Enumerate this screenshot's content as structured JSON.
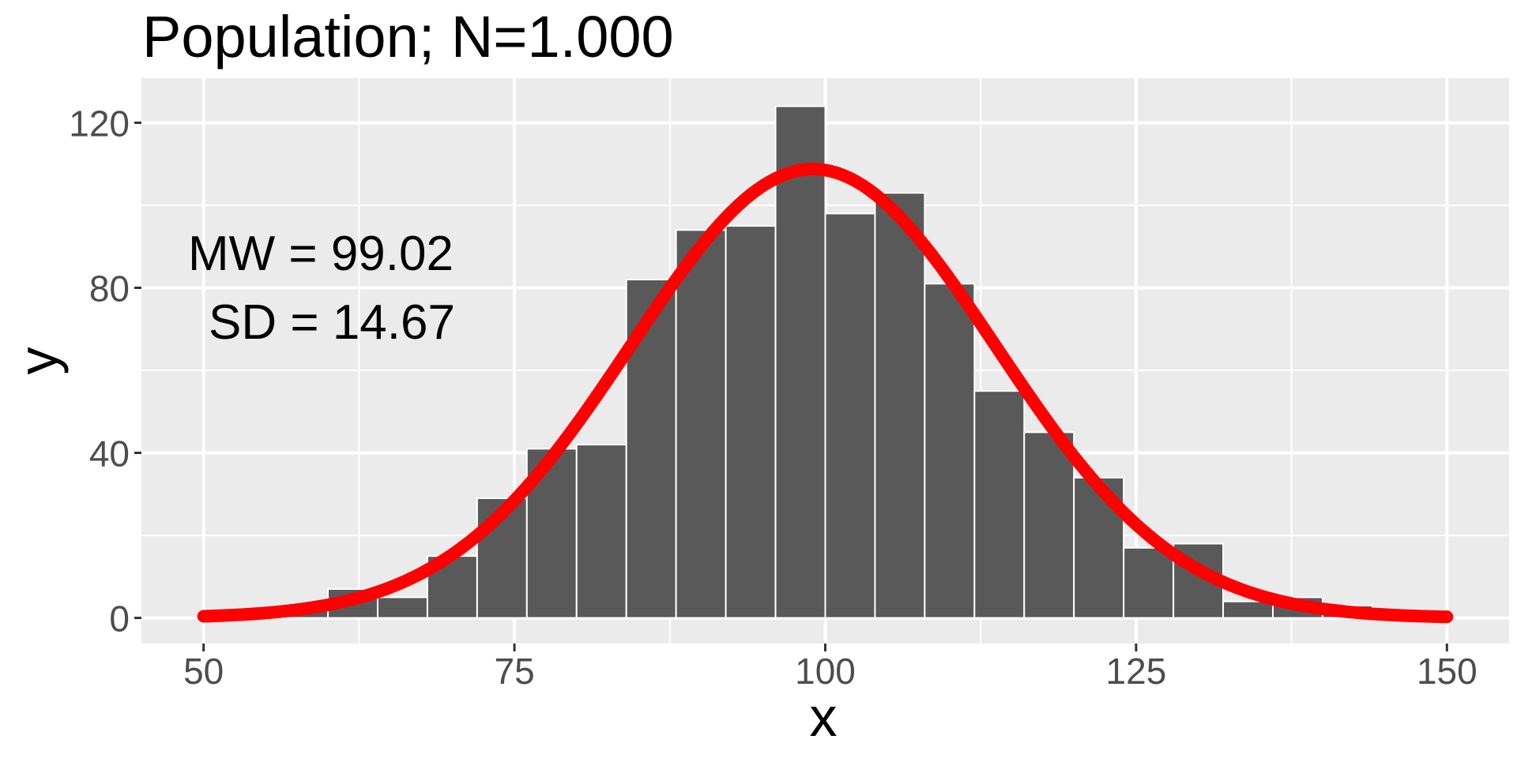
{
  "title": "Population; N=1.000",
  "annotation": {
    "line1": "MW = 99.02",
    "line2": "SD = 14.67"
  },
  "axes": {
    "x": {
      "label": "x",
      "tick_labels": [
        "50",
        "75",
        "100",
        "125",
        "150"
      ],
      "tick_values": [
        50,
        75,
        100,
        125,
        150
      ],
      "minor_tick_values": [
        62.5,
        87.5,
        112.5,
        137.5
      ],
      "range": [
        45,
        155
      ]
    },
    "y": {
      "label": "y",
      "tick_labels": [
        "0",
        "40",
        "80",
        "120"
      ],
      "tick_values": [
        0,
        40,
        80,
        120
      ],
      "minor_tick_values": [
        20,
        60,
        100
      ],
      "range": [
        -6.2,
        130.8
      ]
    }
  },
  "chart_data": {
    "type": "bar",
    "subtype": "histogram-with-normal-density-overlay",
    "title": "Population; N=1.000",
    "xlabel": "x",
    "ylabel": "y",
    "n_total": 1000,
    "bin_width": 4,
    "bin_edges": [
      56,
      60,
      64,
      68,
      72,
      76,
      80,
      84,
      88,
      92,
      96,
      100,
      104,
      108,
      112,
      116,
      120,
      124,
      128,
      132,
      136,
      140,
      144,
      148
    ],
    "counts": [
      2,
      7,
      5,
      15,
      29,
      41,
      42,
      82,
      94,
      95,
      124,
      98,
      103,
      81,
      55,
      45,
      34,
      17,
      18,
      4,
      5,
      3,
      1
    ],
    "curve": {
      "type": "normal-density",
      "mean": 99.02,
      "sd": 14.67,
      "scaled_by_n": 1000,
      "scaled_by_binwidth": 4,
      "peak_height": 108.77,
      "x_min": 50,
      "x_max": 150
    },
    "annotations": [
      "MW = 99.02",
      "SD = 14.67"
    ],
    "xlim": [
      45,
      155
    ],
    "ylim": [
      -6.2,
      130.8
    ],
    "grid": true,
    "legend": "none"
  },
  "colors": {
    "figure_bg": "#FFFFFF",
    "panel_bg": "#EBEBEB",
    "grid": "#FFFFFF",
    "bar_fill": "#595959",
    "bar_stroke": "#FFFFFF",
    "curve": "#FF0000",
    "title_text": "#000000",
    "tick_text": "#4D4D4D",
    "tick_mark": "#333333"
  }
}
